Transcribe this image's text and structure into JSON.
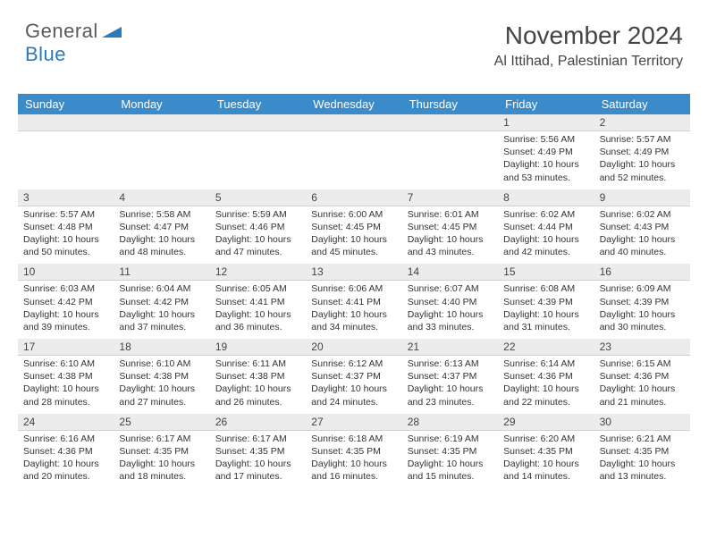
{
  "logo": {
    "word1": "General",
    "word2": "Blue",
    "color_gray": "#5a5a5a",
    "color_blue": "#2b7bba"
  },
  "header": {
    "title": "November 2024",
    "location": "Al Ittihad, Palestinian Territory"
  },
  "dayheaders": [
    "Sunday",
    "Monday",
    "Tuesday",
    "Wednesday",
    "Thursday",
    "Friday",
    "Saturday"
  ],
  "colors": {
    "header_bg": "#3a8bc9",
    "header_text": "#ffffff",
    "daynum_bg": "#ececec",
    "text": "#333333"
  },
  "weeks": [
    {
      "nums": [
        "",
        "",
        "",
        "",
        "",
        "1",
        "2"
      ],
      "cells": [
        {
          "sunrise": "",
          "sunset": "",
          "daylight": ""
        },
        {
          "sunrise": "",
          "sunset": "",
          "daylight": ""
        },
        {
          "sunrise": "",
          "sunset": "",
          "daylight": ""
        },
        {
          "sunrise": "",
          "sunset": "",
          "daylight": ""
        },
        {
          "sunrise": "",
          "sunset": "",
          "daylight": ""
        },
        {
          "sunrise": "Sunrise: 5:56 AM",
          "sunset": "Sunset: 4:49 PM",
          "daylight": "Daylight: 10 hours and 53 minutes."
        },
        {
          "sunrise": "Sunrise: 5:57 AM",
          "sunset": "Sunset: 4:49 PM",
          "daylight": "Daylight: 10 hours and 52 minutes."
        }
      ]
    },
    {
      "nums": [
        "3",
        "4",
        "5",
        "6",
        "7",
        "8",
        "9"
      ],
      "cells": [
        {
          "sunrise": "Sunrise: 5:57 AM",
          "sunset": "Sunset: 4:48 PM",
          "daylight": "Daylight: 10 hours and 50 minutes."
        },
        {
          "sunrise": "Sunrise: 5:58 AM",
          "sunset": "Sunset: 4:47 PM",
          "daylight": "Daylight: 10 hours and 48 minutes."
        },
        {
          "sunrise": "Sunrise: 5:59 AM",
          "sunset": "Sunset: 4:46 PM",
          "daylight": "Daylight: 10 hours and 47 minutes."
        },
        {
          "sunrise": "Sunrise: 6:00 AM",
          "sunset": "Sunset: 4:45 PM",
          "daylight": "Daylight: 10 hours and 45 minutes."
        },
        {
          "sunrise": "Sunrise: 6:01 AM",
          "sunset": "Sunset: 4:45 PM",
          "daylight": "Daylight: 10 hours and 43 minutes."
        },
        {
          "sunrise": "Sunrise: 6:02 AM",
          "sunset": "Sunset: 4:44 PM",
          "daylight": "Daylight: 10 hours and 42 minutes."
        },
        {
          "sunrise": "Sunrise: 6:02 AM",
          "sunset": "Sunset: 4:43 PM",
          "daylight": "Daylight: 10 hours and 40 minutes."
        }
      ]
    },
    {
      "nums": [
        "10",
        "11",
        "12",
        "13",
        "14",
        "15",
        "16"
      ],
      "cells": [
        {
          "sunrise": "Sunrise: 6:03 AM",
          "sunset": "Sunset: 4:42 PM",
          "daylight": "Daylight: 10 hours and 39 minutes."
        },
        {
          "sunrise": "Sunrise: 6:04 AM",
          "sunset": "Sunset: 4:42 PM",
          "daylight": "Daylight: 10 hours and 37 minutes."
        },
        {
          "sunrise": "Sunrise: 6:05 AM",
          "sunset": "Sunset: 4:41 PM",
          "daylight": "Daylight: 10 hours and 36 minutes."
        },
        {
          "sunrise": "Sunrise: 6:06 AM",
          "sunset": "Sunset: 4:41 PM",
          "daylight": "Daylight: 10 hours and 34 minutes."
        },
        {
          "sunrise": "Sunrise: 6:07 AM",
          "sunset": "Sunset: 4:40 PM",
          "daylight": "Daylight: 10 hours and 33 minutes."
        },
        {
          "sunrise": "Sunrise: 6:08 AM",
          "sunset": "Sunset: 4:39 PM",
          "daylight": "Daylight: 10 hours and 31 minutes."
        },
        {
          "sunrise": "Sunrise: 6:09 AM",
          "sunset": "Sunset: 4:39 PM",
          "daylight": "Daylight: 10 hours and 30 minutes."
        }
      ]
    },
    {
      "nums": [
        "17",
        "18",
        "19",
        "20",
        "21",
        "22",
        "23"
      ],
      "cells": [
        {
          "sunrise": "Sunrise: 6:10 AM",
          "sunset": "Sunset: 4:38 PM",
          "daylight": "Daylight: 10 hours and 28 minutes."
        },
        {
          "sunrise": "Sunrise: 6:10 AM",
          "sunset": "Sunset: 4:38 PM",
          "daylight": "Daylight: 10 hours and 27 minutes."
        },
        {
          "sunrise": "Sunrise: 6:11 AM",
          "sunset": "Sunset: 4:38 PM",
          "daylight": "Daylight: 10 hours and 26 minutes."
        },
        {
          "sunrise": "Sunrise: 6:12 AM",
          "sunset": "Sunset: 4:37 PM",
          "daylight": "Daylight: 10 hours and 24 minutes."
        },
        {
          "sunrise": "Sunrise: 6:13 AM",
          "sunset": "Sunset: 4:37 PM",
          "daylight": "Daylight: 10 hours and 23 minutes."
        },
        {
          "sunrise": "Sunrise: 6:14 AM",
          "sunset": "Sunset: 4:36 PM",
          "daylight": "Daylight: 10 hours and 22 minutes."
        },
        {
          "sunrise": "Sunrise: 6:15 AM",
          "sunset": "Sunset: 4:36 PM",
          "daylight": "Daylight: 10 hours and 21 minutes."
        }
      ]
    },
    {
      "nums": [
        "24",
        "25",
        "26",
        "27",
        "28",
        "29",
        "30"
      ],
      "cells": [
        {
          "sunrise": "Sunrise: 6:16 AM",
          "sunset": "Sunset: 4:36 PM",
          "daylight": "Daylight: 10 hours and 20 minutes."
        },
        {
          "sunrise": "Sunrise: 6:17 AM",
          "sunset": "Sunset: 4:35 PM",
          "daylight": "Daylight: 10 hours and 18 minutes."
        },
        {
          "sunrise": "Sunrise: 6:17 AM",
          "sunset": "Sunset: 4:35 PM",
          "daylight": "Daylight: 10 hours and 17 minutes."
        },
        {
          "sunrise": "Sunrise: 6:18 AM",
          "sunset": "Sunset: 4:35 PM",
          "daylight": "Daylight: 10 hours and 16 minutes."
        },
        {
          "sunrise": "Sunrise: 6:19 AM",
          "sunset": "Sunset: 4:35 PM",
          "daylight": "Daylight: 10 hours and 15 minutes."
        },
        {
          "sunrise": "Sunrise: 6:20 AM",
          "sunset": "Sunset: 4:35 PM",
          "daylight": "Daylight: 10 hours and 14 minutes."
        },
        {
          "sunrise": "Sunrise: 6:21 AM",
          "sunset": "Sunset: 4:35 PM",
          "daylight": "Daylight: 10 hours and 13 minutes."
        }
      ]
    }
  ]
}
